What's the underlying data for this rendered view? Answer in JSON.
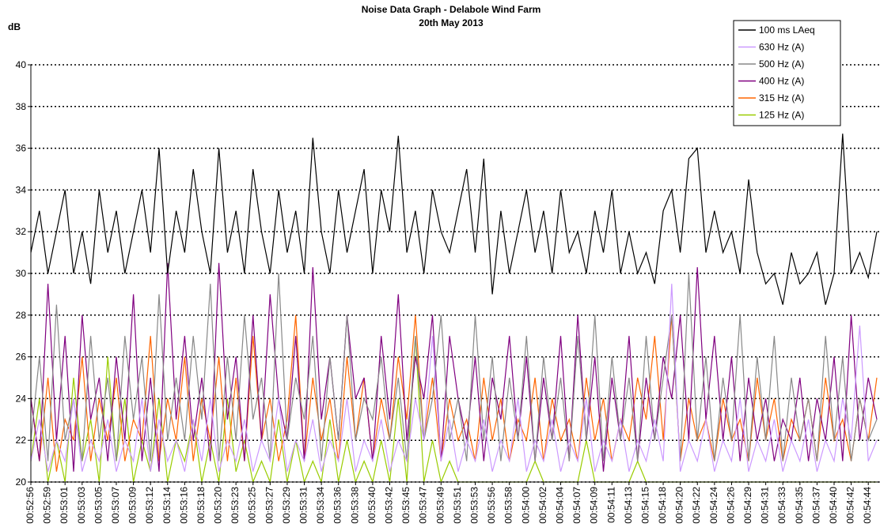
{
  "chart_data": {
    "type": "line",
    "title": "Noise Data Graph - Delabole Wind Farm",
    "subtitle": "20th May 2013",
    "y_label": "dB",
    "categories": [
      "00:52:56",
      null,
      "00:52:59",
      null,
      "00:53:01",
      null,
      "00:53:03",
      null,
      "00:53:05",
      null,
      "00:53:07",
      null,
      "00:53:09",
      null,
      "00:53:12",
      null,
      "00:53:14",
      null,
      "00:53:16",
      null,
      "00:53:18",
      null,
      "00:53:20",
      null,
      "00:53:23",
      null,
      "00:53:25",
      null,
      "00:53:27",
      null,
      "00:53:29",
      null,
      "00:53:31",
      null,
      "00:53:34",
      null,
      "00:53:36",
      null,
      "00:53:38",
      null,
      "00:53:40",
      null,
      "00:53:42",
      null,
      "00:53:45",
      null,
      "00:53:47",
      null,
      "00:53:49",
      null,
      "00:53:51",
      null,
      "00:53:53",
      null,
      "00:53:56",
      null,
      "00:53:58",
      null,
      "00:54:00",
      null,
      "00:54:02",
      null,
      "00:54:04",
      null,
      "00:54:07",
      null,
      "00:54:09",
      null,
      "00:54:11",
      null,
      "00:54:13",
      null,
      "00:54:15",
      null,
      "00:54:18",
      null,
      "00:54:20",
      null,
      "00:54:22",
      null,
      "00:54:24",
      null,
      "00:54:26",
      null,
      "00:54:29",
      null,
      "00:54:31",
      null,
      "00:54:33",
      null,
      "00:54:35",
      null,
      "00:54:37",
      null,
      "00:54:40",
      null,
      "00:54:42",
      null,
      "00:54:44",
      null
    ],
    "series": [
      {
        "name": "100 ms LAeq",
        "color": "#000000",
        "values": [
          31,
          33,
          30,
          32,
          34,
          30,
          32,
          29.5,
          34,
          31,
          33,
          30,
          32,
          34,
          31,
          36,
          30,
          33,
          31,
          35,
          32,
          30,
          36,
          31,
          33,
          30,
          35,
          32,
          30,
          34,
          31,
          33,
          30,
          36.5,
          32,
          30,
          34,
          31,
          33,
          35,
          30,
          34,
          32,
          36.6,
          31,
          33,
          30,
          34,
          32,
          31,
          33,
          35,
          31,
          35.5,
          29,
          33,
          30,
          32,
          34,
          31,
          33,
          30,
          34,
          31,
          32,
          30,
          33,
          31,
          34,
          30,
          32,
          30,
          31,
          29.5,
          33,
          34,
          31,
          35.5,
          36,
          31,
          33,
          31,
          32,
          30,
          34.5,
          31,
          29.5,
          30,
          28.5,
          31,
          29.5,
          30,
          31,
          28.5,
          30,
          36.7,
          30,
          31,
          29.8,
          32
        ]
      },
      {
        "name": "630 Hz (A)",
        "color": "#cc99ff",
        "values": [
          21,
          23,
          20.5,
          22,
          21,
          24,
          20.5,
          22,
          21,
          23,
          20.5,
          22,
          21,
          24,
          20.5,
          23,
          21,
          22,
          20.5,
          23,
          21,
          24,
          20.5,
          22,
          21,
          23,
          20.5,
          22,
          21,
          24,
          20.5,
          22,
          21,
          23,
          20.5,
          22,
          21,
          24,
          20.5,
          22,
          21,
          23,
          20.5,
          22,
          21,
          24,
          22,
          27,
          21,
          23,
          20.5,
          22,
          21,
          23,
          20.5,
          22,
          21,
          24,
          20.5,
          22,
          21,
          23,
          20.5,
          22,
          21,
          24,
          20.5,
          22,
          21,
          23,
          20.5,
          22,
          21,
          23,
          21,
          29.5,
          20.5,
          22,
          21,
          23,
          20.5,
          22,
          21,
          24,
          20.5,
          22,
          21,
          23,
          20.5,
          22,
          21,
          23,
          20.5,
          22,
          21,
          24,
          22,
          27.5,
          21,
          22
        ]
      },
      {
        "name": "500 Hz (A)",
        "color": "#888888",
        "values": [
          22,
          26,
          21,
          28.5,
          22,
          24,
          21,
          27,
          22,
          25,
          21,
          27,
          23,
          26,
          21,
          29,
          22,
          25,
          22,
          27,
          23,
          29.5,
          21,
          26,
          22,
          28,
          23,
          25,
          21,
          30,
          22,
          25,
          23,
          27,
          21,
          26,
          22,
          28,
          22,
          24,
          23,
          26,
          22,
          25,
          21,
          27,
          22,
          24,
          28,
          22,
          24,
          21,
          28,
          22,
          26,
          21,
          25,
          22,
          27,
          21,
          26,
          22,
          25,
          21,
          27,
          22,
          28,
          21,
          26,
          22,
          25,
          21,
          27,
          22,
          25,
          28,
          21,
          30,
          22,
          26,
          21,
          25,
          22,
          28,
          21,
          26,
          22,
          27,
          21,
          25,
          22,
          24,
          21,
          27,
          22,
          26,
          21,
          24,
          22,
          23
        ]
      },
      {
        "name": "400 Hz (A)",
        "color": "#800080",
        "values": [
          24,
          21,
          29.5,
          22,
          27,
          20.5,
          28,
          23,
          25,
          21,
          26,
          22,
          29,
          21,
          25,
          20.5,
          30.5,
          23,
          27,
          22,
          25,
          21,
          30.5,
          23,
          26,
          21,
          28,
          22,
          29,
          24,
          22,
          27,
          21,
          30.3,
          23,
          26,
          22,
          28,
          24,
          25,
          21,
          27,
          23,
          29,
          22,
          26,
          24,
          28,
          21,
          27,
          24,
          22,
          26,
          21,
          25,
          23,
          27,
          22,
          26,
          21,
          25,
          22,
          27,
          21,
          28,
          22,
          26,
          20.5,
          25,
          22,
          27,
          21,
          25,
          22,
          26,
          24,
          28,
          22,
          30.3,
          23,
          27,
          22,
          26,
          21,
          25,
          22,
          24,
          21,
          23,
          22,
          25,
          21,
          24,
          22,
          26,
          21,
          28,
          22,
          25,
          23
        ]
      },
      {
        "name": "315 Hz (A)",
        "color": "#ff6600",
        "values": [
          24,
          21,
          25,
          20.5,
          23,
          22,
          26,
          21,
          24,
          22,
          25,
          21,
          23,
          22,
          27,
          21,
          24,
          22,
          26,
          21,
          24,
          22,
          26,
          21,
          25,
          21,
          27,
          22,
          24,
          21,
          23,
          28,
          21,
          25,
          22,
          24,
          21,
          26,
          22,
          25,
          21,
          24,
          22,
          26,
          23,
          28,
          22,
          25,
          21,
          24,
          22,
          23,
          21,
          25,
          22,
          24,
          21,
          23,
          22,
          25,
          21,
          24,
          22,
          23,
          21,
          25,
          22,
          24,
          21,
          23,
          22,
          25,
          23,
          27,
          22,
          28,
          21,
          24,
          22,
          23,
          21,
          24,
          22,
          23,
          21,
          25,
          22,
          24,
          21,
          23,
          22,
          24,
          21,
          25,
          22,
          23,
          21,
          24,
          22,
          25
        ]
      },
      {
        "name": "125 Hz (A)",
        "color": "#99cc00",
        "values": [
          21,
          24,
          20,
          22,
          20,
          25,
          21,
          23,
          20,
          26,
          21,
          24,
          20,
          22,
          20.5,
          24,
          20,
          22,
          21,
          23,
          20,
          22,
          20,
          24,
          20.5,
          22,
          20,
          21,
          20,
          23,
          20,
          22,
          20,
          21,
          20,
          23,
          20,
          22,
          20,
          21,
          20,
          22,
          20,
          24,
          20,
          27,
          20,
          22,
          20,
          21,
          20,
          20,
          20,
          20,
          20,
          20,
          20,
          20,
          20,
          21,
          20,
          20,
          20,
          20,
          20,
          22,
          20,
          20,
          20,
          20,
          20,
          21,
          20,
          20,
          20,
          20,
          20,
          20,
          20,
          20,
          20,
          20,
          20,
          20,
          20,
          20,
          20,
          20,
          20,
          20,
          20,
          20,
          20,
          20,
          20,
          20,
          20,
          20,
          20,
          20
        ]
      }
    ],
    "ylim": [
      20,
      40
    ],
    "yticks": [
      20,
      22,
      24,
      26,
      28,
      30,
      32,
      34,
      36,
      38,
      40
    ],
    "grid": true,
    "legend": "upper right"
  }
}
